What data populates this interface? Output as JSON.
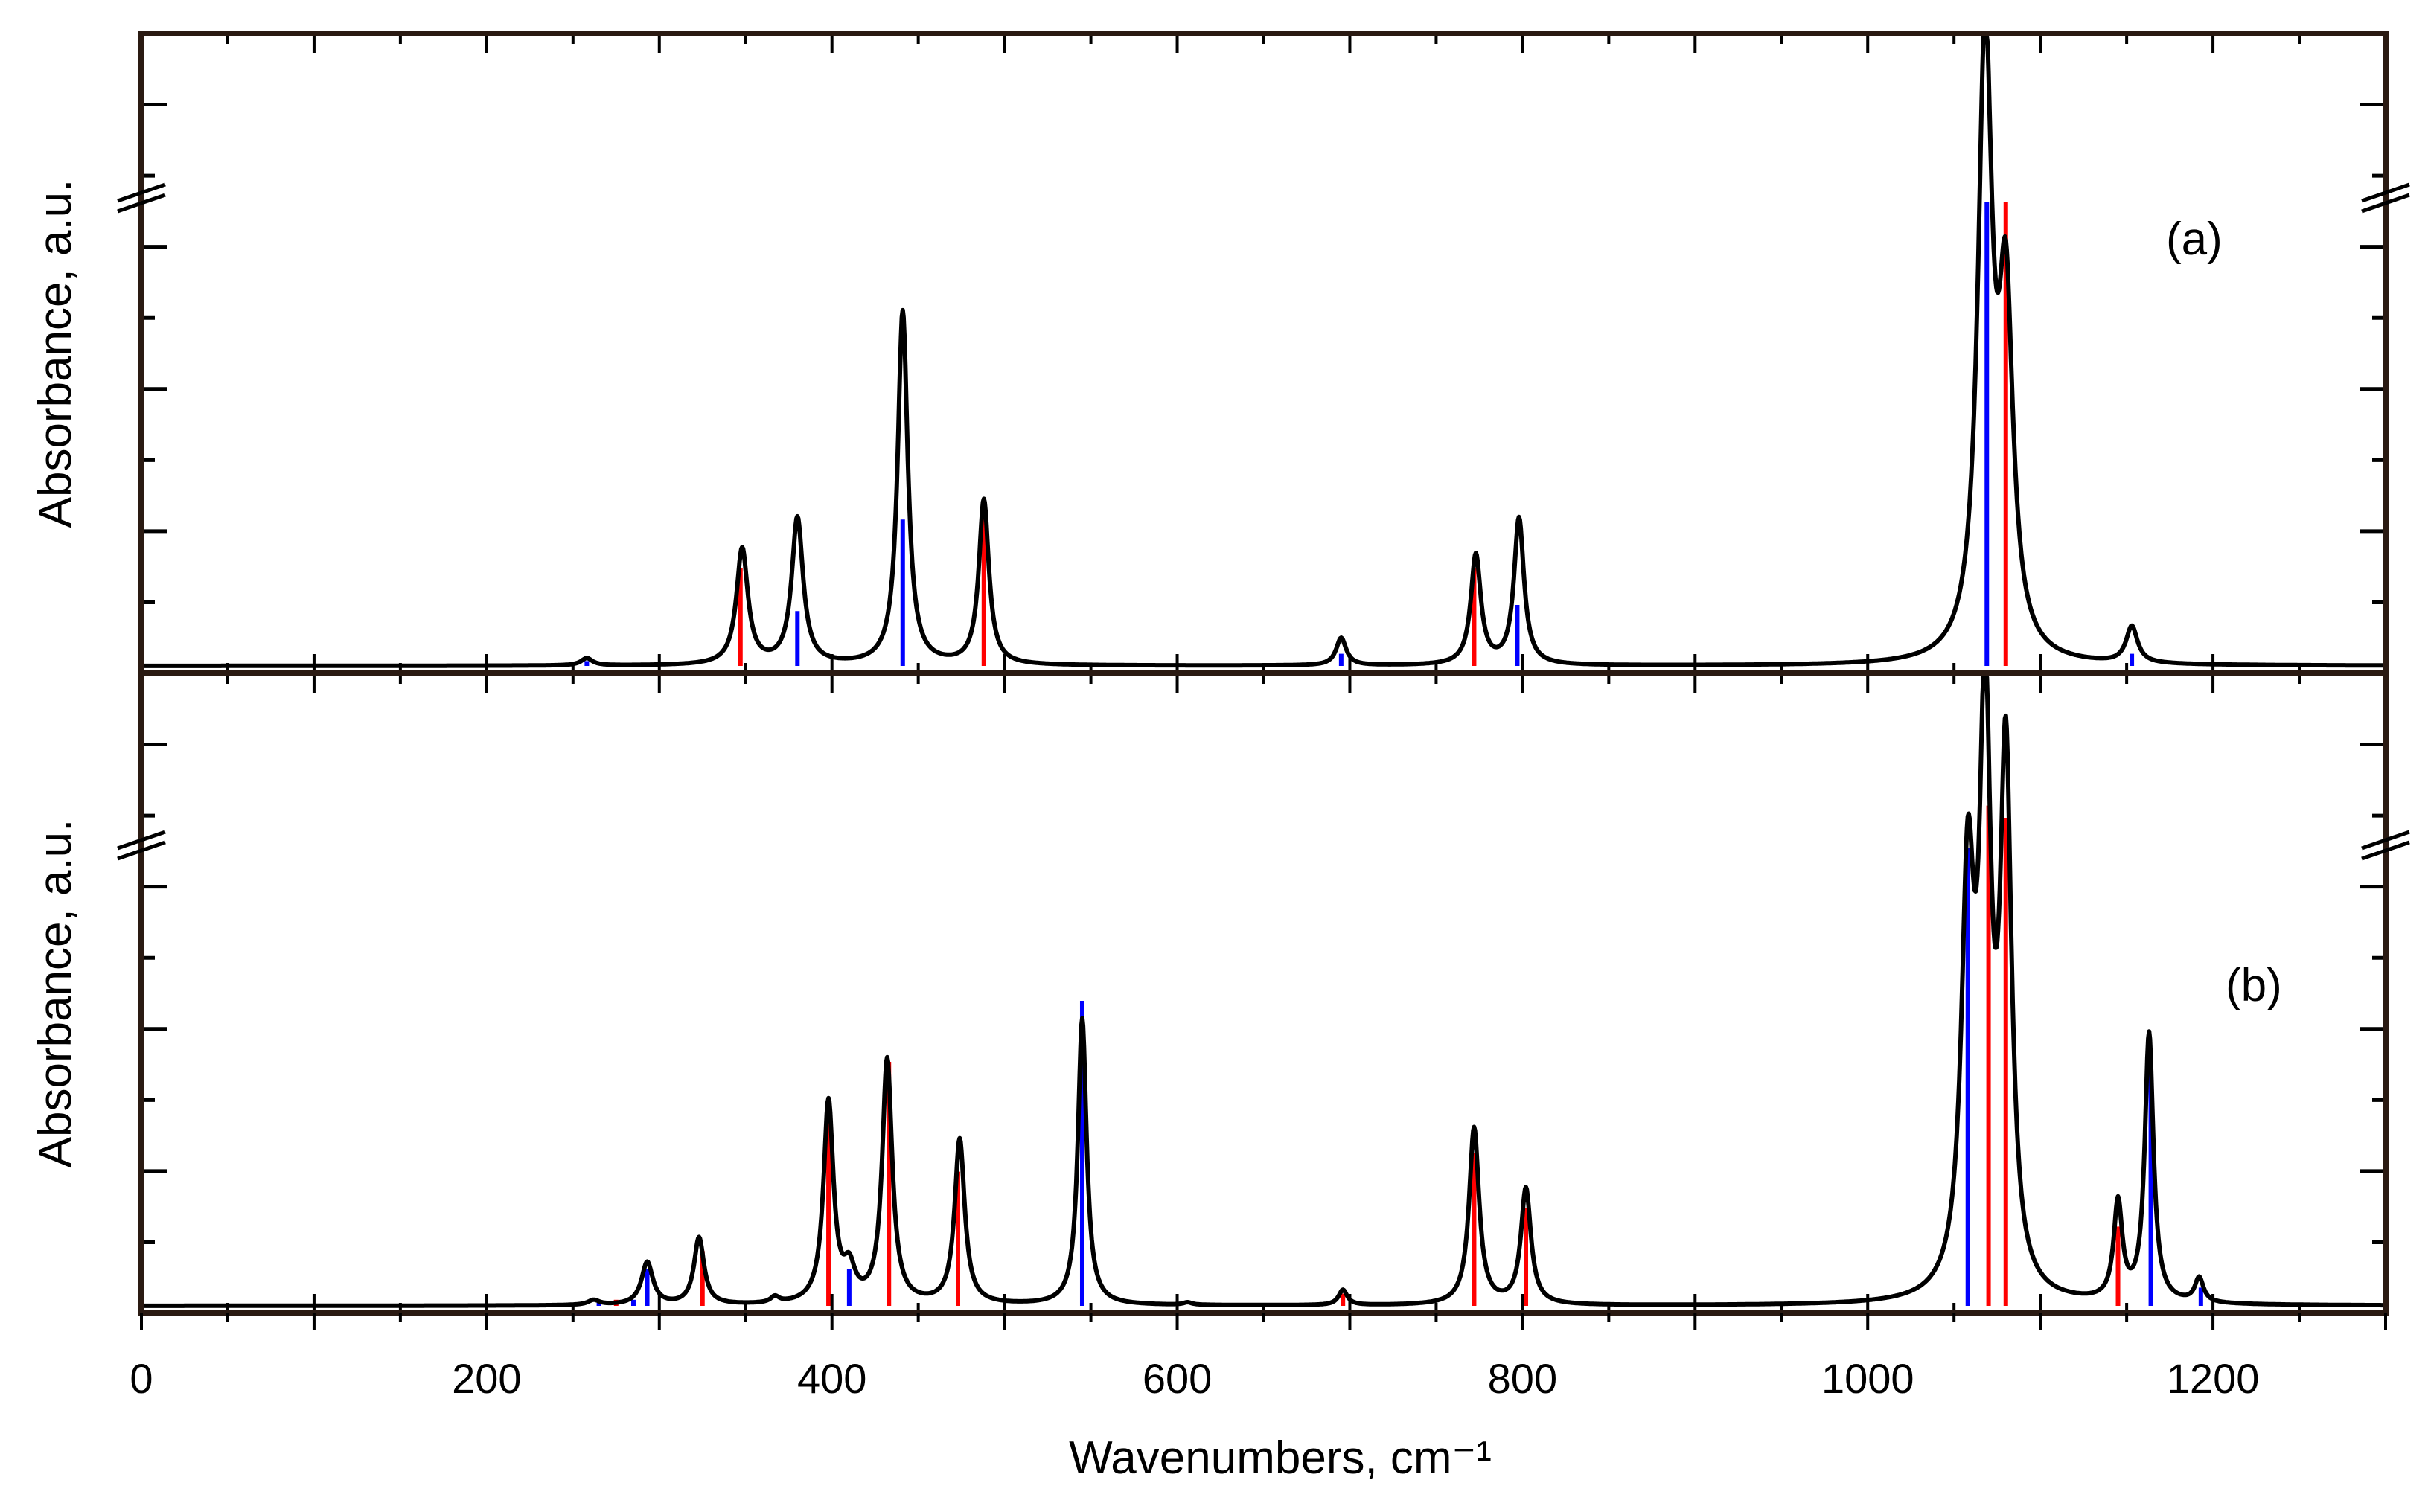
{
  "chart_data": [
    {
      "type": "line",
      "panel_label": "(a)",
      "ylabel": "Absorbance, a.u.",
      "xlabel": "Wavenumbers, cm⁻¹",
      "xlim": [
        0,
        1300
      ],
      "ylim": [
        0,
        1
      ],
      "axis_break": true,
      "spectrum_peaks": [
        {
          "x": 258,
          "h": 0.012,
          "w": 8
        },
        {
          "x": 348,
          "h": 0.19,
          "w": 8
        },
        {
          "x": 380,
          "h": 0.24,
          "w": 8
        },
        {
          "x": 441,
          "h": 0.58,
          "w": 7
        },
        {
          "x": 488,
          "h": 0.27,
          "w": 7
        },
        {
          "x": 695,
          "h": 0.045,
          "w": 7
        },
        {
          "x": 773,
          "h": 0.18,
          "w": 7
        },
        {
          "x": 798,
          "h": 0.24,
          "w": 7
        },
        {
          "x": 1068,
          "h": 1.0,
          "w": 10
        },
        {
          "x": 1080,
          "h": 0.55,
          "w": 10
        },
        {
          "x": 1153,
          "h": 0.06,
          "w": 8
        }
      ],
      "stick_series": [
        {
          "name": "red",
          "color": "#ff0000",
          "x": [
            347,
            488,
            772,
            1080
          ],
          "y": [
            0.16,
            0.26,
            0.16,
            0.76
          ]
        },
        {
          "name": "blue",
          "color": "#0000ff",
          "x": [
            258,
            380,
            441,
            695,
            797,
            1069,
            1153
          ],
          "y": [
            0.008,
            0.09,
            0.24,
            0.02,
            0.1,
            0.76,
            0.02
          ]
        }
      ]
    },
    {
      "type": "line",
      "panel_label": "(b)",
      "ylabel": "Absorbance, a.u.",
      "xlabel": "Wavenumbers, cm⁻¹",
      "xlim": [
        0,
        1300
      ],
      "ylim": [
        0,
        1
      ],
      "axis_break": true,
      "spectrum_peaks": [
        {
          "x": 262,
          "h": 0.008,
          "w": 8
        },
        {
          "x": 293,
          "h": 0.07,
          "w": 8
        },
        {
          "x": 323,
          "h": 0.11,
          "w": 7
        },
        {
          "x": 367,
          "h": 0.01,
          "w": 6
        },
        {
          "x": 398,
          "h": 0.33,
          "w": 7
        },
        {
          "x": 410,
          "h": 0.05,
          "w": 8
        },
        {
          "x": 432,
          "h": 0.4,
          "w": 7
        },
        {
          "x": 474,
          "h": 0.27,
          "w": 7
        },
        {
          "x": 545,
          "h": 0.47,
          "w": 6
        },
        {
          "x": 606,
          "h": 0.004,
          "w": 6
        },
        {
          "x": 696,
          "h": 0.025,
          "w": 6
        },
        {
          "x": 772,
          "h": 0.29,
          "w": 7
        },
        {
          "x": 802,
          "h": 0.19,
          "w": 7
        },
        {
          "x": 1058,
          "h": 0.65,
          "w": 9
        },
        {
          "x": 1068,
          "h": 0.9,
          "w": 8
        },
        {
          "x": 1080,
          "h": 0.85,
          "w": 8
        },
        {
          "x": 1145,
          "h": 0.16,
          "w": 6
        },
        {
          "x": 1163,
          "h": 0.44,
          "w": 6
        },
        {
          "x": 1192,
          "h": 0.04,
          "w": 6
        }
      ],
      "stick_series": [
        {
          "name": "red",
          "color": "#ff0000",
          "x": [
            275,
            325,
            398,
            433,
            473,
            696,
            772,
            802,
            1070,
            1080,
            1145
          ],
          "y": [
            0.01,
            0.09,
            0.32,
            0.4,
            0.22,
            0.02,
            0.25,
            0.16,
            0.82,
            0.8,
            0.13
          ]
        },
        {
          "name": "blue",
          "color": "#0000ff",
          "x": [
            265,
            285,
            293,
            410,
            545,
            1058,
            1164,
            1193
          ],
          "y": [
            0.005,
            0.01,
            0.06,
            0.06,
            0.5,
            0.75,
            0.42,
            0.03
          ]
        }
      ]
    }
  ],
  "x_ticks": [
    "0",
    "200",
    "400",
    "600",
    "800",
    "1000",
    "1200"
  ]
}
